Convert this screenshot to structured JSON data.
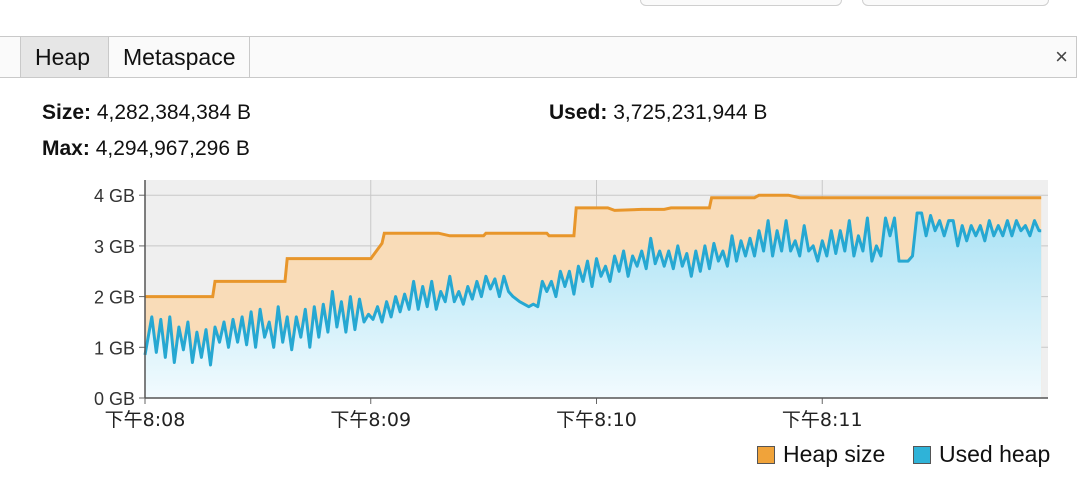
{
  "tabs": [
    {
      "label": "Heap",
      "active": true
    },
    {
      "label": "Metaspace",
      "active": false
    }
  ],
  "close_icon": "×",
  "stats": {
    "size_label": "Size:",
    "size_value": "4,282,384,384 B",
    "used_label": "Used:",
    "used_value": "3,725,231,944 B",
    "max_label": "Max:",
    "max_value": "4,294,967,296 B"
  },
  "legend": {
    "heap_size": "Heap size",
    "used_heap": "Used heap"
  },
  "colors": {
    "heap_line": "#e8962b",
    "heap_fill": "#f9dcb8",
    "used_line": "#26a8d2",
    "used_fill": "#d4f1fb",
    "plot_bg": "#efefef",
    "grid": "#c8c8c8"
  },
  "chart_data": {
    "type": "area",
    "y_tick_labels": [
      "0 GB",
      "1 GB",
      "2 GB",
      "3 GB",
      "4 GB"
    ],
    "x_tick_labels": [
      "下午8:08",
      "下午8:09",
      "下午8:10",
      "下午8:11"
    ],
    "ylim": [
      0,
      4.3
    ],
    "xlim": [
      0,
      4.0
    ],
    "x_ticks": [
      0,
      1,
      2,
      3
    ],
    "grid": true,
    "legend_position": "bottom-right",
    "series": [
      {
        "name": "Heap size",
        "color": "#e8962b",
        "points": [
          [
            0,
            2.0
          ],
          [
            0.3,
            2.0
          ],
          [
            0.31,
            2.3
          ],
          [
            0.62,
            2.3
          ],
          [
            0.63,
            2.75
          ],
          [
            0.95,
            2.75
          ],
          [
            1.0,
            2.75
          ],
          [
            1.05,
            3.05
          ],
          [
            1.06,
            3.25
          ],
          [
            1.3,
            3.25
          ],
          [
            1.35,
            3.2
          ],
          [
            1.5,
            3.2
          ],
          [
            1.51,
            3.25
          ],
          [
            1.78,
            3.25
          ],
          [
            1.79,
            3.2
          ],
          [
            1.9,
            3.2
          ],
          [
            1.91,
            3.75
          ],
          [
            2.05,
            3.75
          ],
          [
            2.08,
            3.7
          ],
          [
            2.2,
            3.72
          ],
          [
            2.3,
            3.72
          ],
          [
            2.33,
            3.75
          ],
          [
            2.5,
            3.75
          ],
          [
            2.51,
            3.95
          ],
          [
            2.7,
            3.95
          ],
          [
            2.72,
            4.0
          ],
          [
            2.85,
            4.0
          ],
          [
            2.9,
            3.95
          ],
          [
            3.3,
            3.95
          ],
          [
            3.97,
            3.95
          ]
        ]
      },
      {
        "name": "Used heap",
        "color": "#26a8d2",
        "points": [
          [
            0,
            0.85
          ],
          [
            0.03,
            1.6
          ],
          [
            0.05,
            0.9
          ],
          [
            0.07,
            1.55
          ],
          [
            0.09,
            0.8
          ],
          [
            0.11,
            1.6
          ],
          [
            0.13,
            0.7
          ],
          [
            0.15,
            1.4
          ],
          [
            0.17,
            0.95
          ],
          [
            0.19,
            1.5
          ],
          [
            0.21,
            0.7
          ],
          [
            0.23,
            1.3
          ],
          [
            0.25,
            0.8
          ],
          [
            0.27,
            1.35
          ],
          [
            0.29,
            0.65
          ],
          [
            0.31,
            1.4
          ],
          [
            0.33,
            1.1
          ],
          [
            0.35,
            1.5
          ],
          [
            0.37,
            1.0
          ],
          [
            0.39,
            1.55
          ],
          [
            0.41,
            1.1
          ],
          [
            0.43,
            1.6
          ],
          [
            0.45,
            1.05
          ],
          [
            0.47,
            1.7
          ],
          [
            0.49,
            1.0
          ],
          [
            0.51,
            1.75
          ],
          [
            0.53,
            1.2
          ],
          [
            0.55,
            1.5
          ],
          [
            0.57,
            1.0
          ],
          [
            0.59,
            1.8
          ],
          [
            0.61,
            1.1
          ],
          [
            0.63,
            1.6
          ],
          [
            0.65,
            0.95
          ],
          [
            0.67,
            1.6
          ],
          [
            0.69,
            1.2
          ],
          [
            0.71,
            1.75
          ],
          [
            0.73,
            1.0
          ],
          [
            0.75,
            1.8
          ],
          [
            0.77,
            1.2
          ],
          [
            0.79,
            1.85
          ],
          [
            0.81,
            1.3
          ],
          [
            0.83,
            2.1
          ],
          [
            0.85,
            1.4
          ],
          [
            0.87,
            1.9
          ],
          [
            0.89,
            1.3
          ],
          [
            0.91,
            2.0
          ],
          [
            0.93,
            1.35
          ],
          [
            0.95,
            1.95
          ],
          [
            0.97,
            1.5
          ],
          [
            0.99,
            1.65
          ],
          [
            1.01,
            1.55
          ],
          [
            1.03,
            1.8
          ],
          [
            1.05,
            1.5
          ],
          [
            1.07,
            1.9
          ],
          [
            1.09,
            1.6
          ],
          [
            1.11,
            2.0
          ],
          [
            1.13,
            1.7
          ],
          [
            1.15,
            2.05
          ],
          [
            1.17,
            1.75
          ],
          [
            1.19,
            2.3
          ],
          [
            1.21,
            1.75
          ],
          [
            1.23,
            2.2
          ],
          [
            1.25,
            1.8
          ],
          [
            1.27,
            2.3
          ],
          [
            1.29,
            1.75
          ],
          [
            1.31,
            2.1
          ],
          [
            1.33,
            1.9
          ],
          [
            1.35,
            2.4
          ],
          [
            1.37,
            1.9
          ],
          [
            1.39,
            2.1
          ],
          [
            1.41,
            1.85
          ],
          [
            1.43,
            2.2
          ],
          [
            1.45,
            1.95
          ],
          [
            1.47,
            2.3
          ],
          [
            1.49,
            2.0
          ],
          [
            1.51,
            2.4
          ],
          [
            1.53,
            2.15
          ],
          [
            1.55,
            2.35
          ],
          [
            1.57,
            2.0
          ],
          [
            1.59,
            2.4
          ],
          [
            1.61,
            2.1
          ],
          [
            1.63,
            2.0
          ],
          [
            1.66,
            1.9
          ],
          [
            1.7,
            1.8
          ],
          [
            1.72,
            1.85
          ],
          [
            1.74,
            1.8
          ],
          [
            1.76,
            2.3
          ],
          [
            1.78,
            2.1
          ],
          [
            1.8,
            2.3
          ],
          [
            1.82,
            2.0
          ],
          [
            1.84,
            2.5
          ],
          [
            1.86,
            2.2
          ],
          [
            1.88,
            2.5
          ],
          [
            1.9,
            2.05
          ],
          [
            1.92,
            2.6
          ],
          [
            1.94,
            2.3
          ],
          [
            1.96,
            2.7
          ],
          [
            1.98,
            2.2
          ],
          [
            2.0,
            2.75
          ],
          [
            2.02,
            2.4
          ],
          [
            2.04,
            2.6
          ],
          [
            2.06,
            2.3
          ],
          [
            2.08,
            2.8
          ],
          [
            2.1,
            2.5
          ],
          [
            2.12,
            2.9
          ],
          [
            2.14,
            2.4
          ],
          [
            2.16,
            2.8
          ],
          [
            2.18,
            2.6
          ],
          [
            2.2,
            2.9
          ],
          [
            2.22,
            2.55
          ],
          [
            2.24,
            3.15
          ],
          [
            2.26,
            2.65
          ],
          [
            2.28,
            2.9
          ],
          [
            2.3,
            2.6
          ],
          [
            2.32,
            2.9
          ],
          [
            2.34,
            2.55
          ],
          [
            2.36,
            3.0
          ],
          [
            2.38,
            2.6
          ],
          [
            2.4,
            2.85
          ],
          [
            2.42,
            2.4
          ],
          [
            2.44,
            2.9
          ],
          [
            2.46,
            2.5
          ],
          [
            2.48,
            3.0
          ],
          [
            2.5,
            2.55
          ],
          [
            2.52,
            3.05
          ],
          [
            2.54,
            2.7
          ],
          [
            2.56,
            2.9
          ],
          [
            2.58,
            2.6
          ],
          [
            2.6,
            3.2
          ],
          [
            2.62,
            2.7
          ],
          [
            2.64,
            3.1
          ],
          [
            2.66,
            2.8
          ],
          [
            2.68,
            3.15
          ],
          [
            2.7,
            2.8
          ],
          [
            2.72,
            3.3
          ],
          [
            2.74,
            2.9
          ],
          [
            2.76,
            3.5
          ],
          [
            2.78,
            2.8
          ],
          [
            2.8,
            3.3
          ],
          [
            2.82,
            2.9
          ],
          [
            2.84,
            3.5
          ],
          [
            2.86,
            2.9
          ],
          [
            2.88,
            3.1
          ],
          [
            2.9,
            2.8
          ],
          [
            2.92,
            3.4
          ],
          [
            2.94,
            2.9
          ],
          [
            2.96,
            3.0
          ],
          [
            2.98,
            2.7
          ],
          [
            3.0,
            3.1
          ],
          [
            3.02,
            2.8
          ],
          [
            3.04,
            3.3
          ],
          [
            3.06,
            2.85
          ],
          [
            3.08,
            3.3
          ],
          [
            3.1,
            2.9
          ],
          [
            3.12,
            3.5
          ],
          [
            3.14,
            2.8
          ],
          [
            3.16,
            3.2
          ],
          [
            3.18,
            2.9
          ],
          [
            3.2,
            3.55
          ],
          [
            3.22,
            2.7
          ],
          [
            3.24,
            3.0
          ],
          [
            3.26,
            2.8
          ],
          [
            3.28,
            3.55
          ],
          [
            3.3,
            3.2
          ],
          [
            3.32,
            3.55
          ],
          [
            3.34,
            2.7
          ],
          [
            3.36,
            2.7
          ],
          [
            3.38,
            2.7
          ],
          [
            3.4,
            2.8
          ],
          [
            3.42,
            3.65
          ],
          [
            3.44,
            3.65
          ],
          [
            3.46,
            3.2
          ],
          [
            3.48,
            3.6
          ],
          [
            3.5,
            3.3
          ],
          [
            3.52,
            3.5
          ],
          [
            3.54,
            3.2
          ],
          [
            3.56,
            3.5
          ],
          [
            3.58,
            3.5
          ],
          [
            3.6,
            3.0
          ],
          [
            3.62,
            3.4
          ],
          [
            3.64,
            3.1
          ],
          [
            3.66,
            3.4
          ],
          [
            3.68,
            3.2
          ],
          [
            3.7,
            3.4
          ],
          [
            3.72,
            3.1
          ],
          [
            3.74,
            3.5
          ],
          [
            3.76,
            3.2
          ],
          [
            3.78,
            3.4
          ],
          [
            3.8,
            3.2
          ],
          [
            3.82,
            3.5
          ],
          [
            3.84,
            3.2
          ],
          [
            3.86,
            3.5
          ],
          [
            3.88,
            3.3
          ],
          [
            3.9,
            3.4
          ],
          [
            3.92,
            3.2
          ],
          [
            3.94,
            3.5
          ],
          [
            3.96,
            3.3
          ],
          [
            3.97,
            3.3
          ]
        ]
      }
    ]
  }
}
